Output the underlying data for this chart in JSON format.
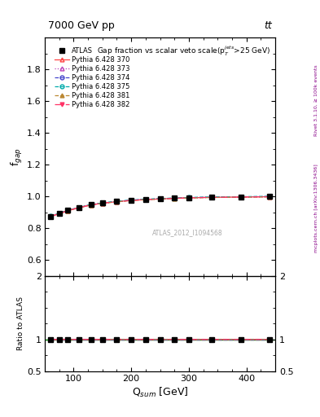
{
  "title_top": "7000 GeV pp",
  "title_top_right": "tt",
  "plot_title": "Gap fraction vs scalar veto scale(p$_T^{jets}$>25 GeV)",
  "xlabel": "Q$_{sum}$ [GeV]",
  "ylabel_main": "f$_{gap}$",
  "ylabel_ratio": "Ratio to ATLAS",
  "watermark": "ATLAS_2012_I1094568",
  "right_label_top": "Rivet 3.1.10, ≥ 100k events",
  "right_label_bottom": "mcplots.cern.ch [arXiv:1306.3436]",
  "xmin": 50,
  "xmax": 450,
  "ymin_main": 0.5,
  "ymax_main": 2.0,
  "ymin_ratio": 0.5,
  "ymax_ratio": 2.0,
  "yticks_main": [
    0.6,
    0.8,
    1.0,
    1.2,
    1.4,
    1.6,
    1.8
  ],
  "yticks_ratio": [
    0.5,
    1.0,
    2.0
  ],
  "x_data": [
    60,
    75,
    90,
    110,
    130,
    150,
    175,
    200,
    225,
    250,
    275,
    300,
    340,
    390,
    440
  ],
  "atlas_y": [
    0.875,
    0.893,
    0.912,
    0.93,
    0.948,
    0.958,
    0.968,
    0.976,
    0.981,
    0.985,
    0.989,
    0.992,
    0.995,
    0.997,
    0.999
  ],
  "atlas_yerr": [
    0.01,
    0.008,
    0.007,
    0.006,
    0.005,
    0.005,
    0.004,
    0.004,
    0.003,
    0.003,
    0.003,
    0.002,
    0.002,
    0.002,
    0.001
  ],
  "series": [
    {
      "label": "Pythia 6.428 370",
      "color": "#ff4444",
      "linestyle": "-",
      "marker": "^",
      "markerfacecolor": "none",
      "y": [
        0.873,
        0.891,
        0.91,
        0.929,
        0.946,
        0.957,
        0.967,
        0.975,
        0.98,
        0.984,
        0.988,
        0.991,
        0.994,
        0.996,
        0.998
      ]
    },
    {
      "label": "Pythia 6.428 373",
      "color": "#bb44bb",
      "linestyle": ":",
      "marker": "^",
      "markerfacecolor": "none",
      "y": [
        0.874,
        0.892,
        0.911,
        0.93,
        0.947,
        0.957,
        0.967,
        0.975,
        0.98,
        0.984,
        0.988,
        0.991,
        0.994,
        0.996,
        0.998
      ]
    },
    {
      "label": "Pythia 6.428 374",
      "color": "#4444cc",
      "linestyle": "--",
      "marker": "o",
      "markerfacecolor": "none",
      "y": [
        0.875,
        0.893,
        0.912,
        0.93,
        0.948,
        0.958,
        0.968,
        0.976,
        0.981,
        0.985,
        0.989,
        0.992,
        0.995,
        0.997,
        0.999
      ]
    },
    {
      "label": "Pythia 6.428 375",
      "color": "#00aaaa",
      "linestyle": "--",
      "marker": "o",
      "markerfacecolor": "none",
      "y": [
        0.876,
        0.894,
        0.913,
        0.931,
        0.949,
        0.959,
        0.969,
        0.977,
        0.982,
        0.986,
        0.99,
        0.993,
        0.996,
        0.998,
        1.0
      ]
    },
    {
      "label": "Pythia 6.428 381",
      "color": "#bb8833",
      "linestyle": "--",
      "marker": "^",
      "markerfacecolor": "#bb8833",
      "y": [
        0.873,
        0.891,
        0.91,
        0.929,
        0.946,
        0.956,
        0.966,
        0.974,
        0.979,
        0.983,
        0.987,
        0.99,
        0.993,
        0.995,
        0.997
      ]
    },
    {
      "label": "Pythia 6.428 382",
      "color": "#ff3366",
      "linestyle": "-.",
      "marker": "v",
      "markerfacecolor": "#ff3366",
      "y": [
        0.874,
        0.892,
        0.911,
        0.93,
        0.947,
        0.957,
        0.967,
        0.975,
        0.98,
        0.984,
        0.988,
        0.991,
        0.994,
        0.996,
        0.998
      ]
    }
  ]
}
